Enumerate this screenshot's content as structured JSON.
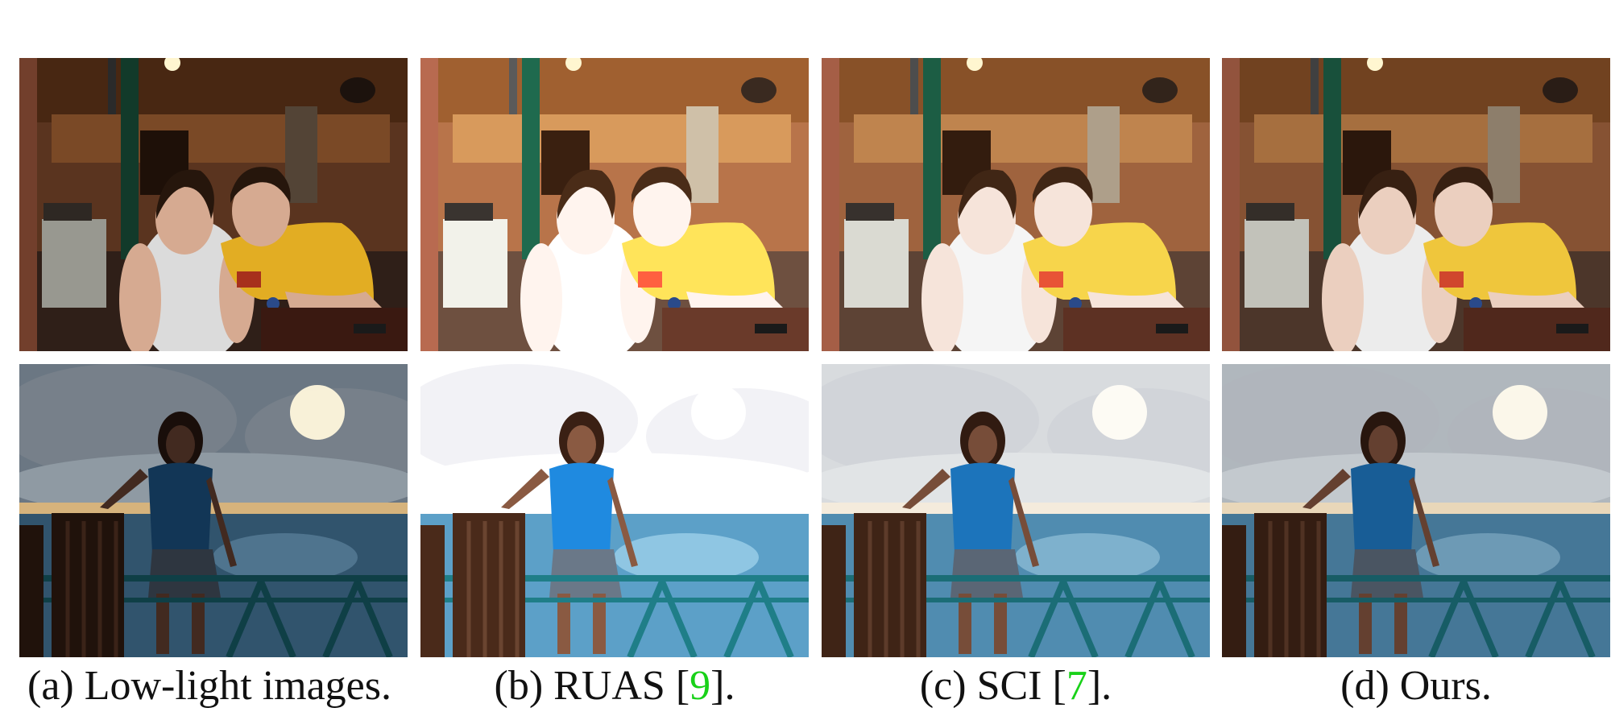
{
  "figure": {
    "captions": [
      {
        "text": "(a) Low-light images."
      },
      {
        "prefix": "(b) RUAS [",
        "cite": "9",
        "suffix": "]."
      },
      {
        "prefix": "(c) SCI [",
        "cite": "7",
        "suffix": "]."
      },
      {
        "text": "(d) Ours."
      }
    ]
  },
  "colors": {
    "citation": "#19d119",
    "caption_text": "#111111"
  },
  "panels": {
    "top_row_scene": "couple-at-night-cafe-photo",
    "bottom_row_scene": "woman-on-seaside-deck-photo",
    "enhancement_levels": [
      0.25,
      1.0,
      0.8,
      0.6
    ]
  }
}
